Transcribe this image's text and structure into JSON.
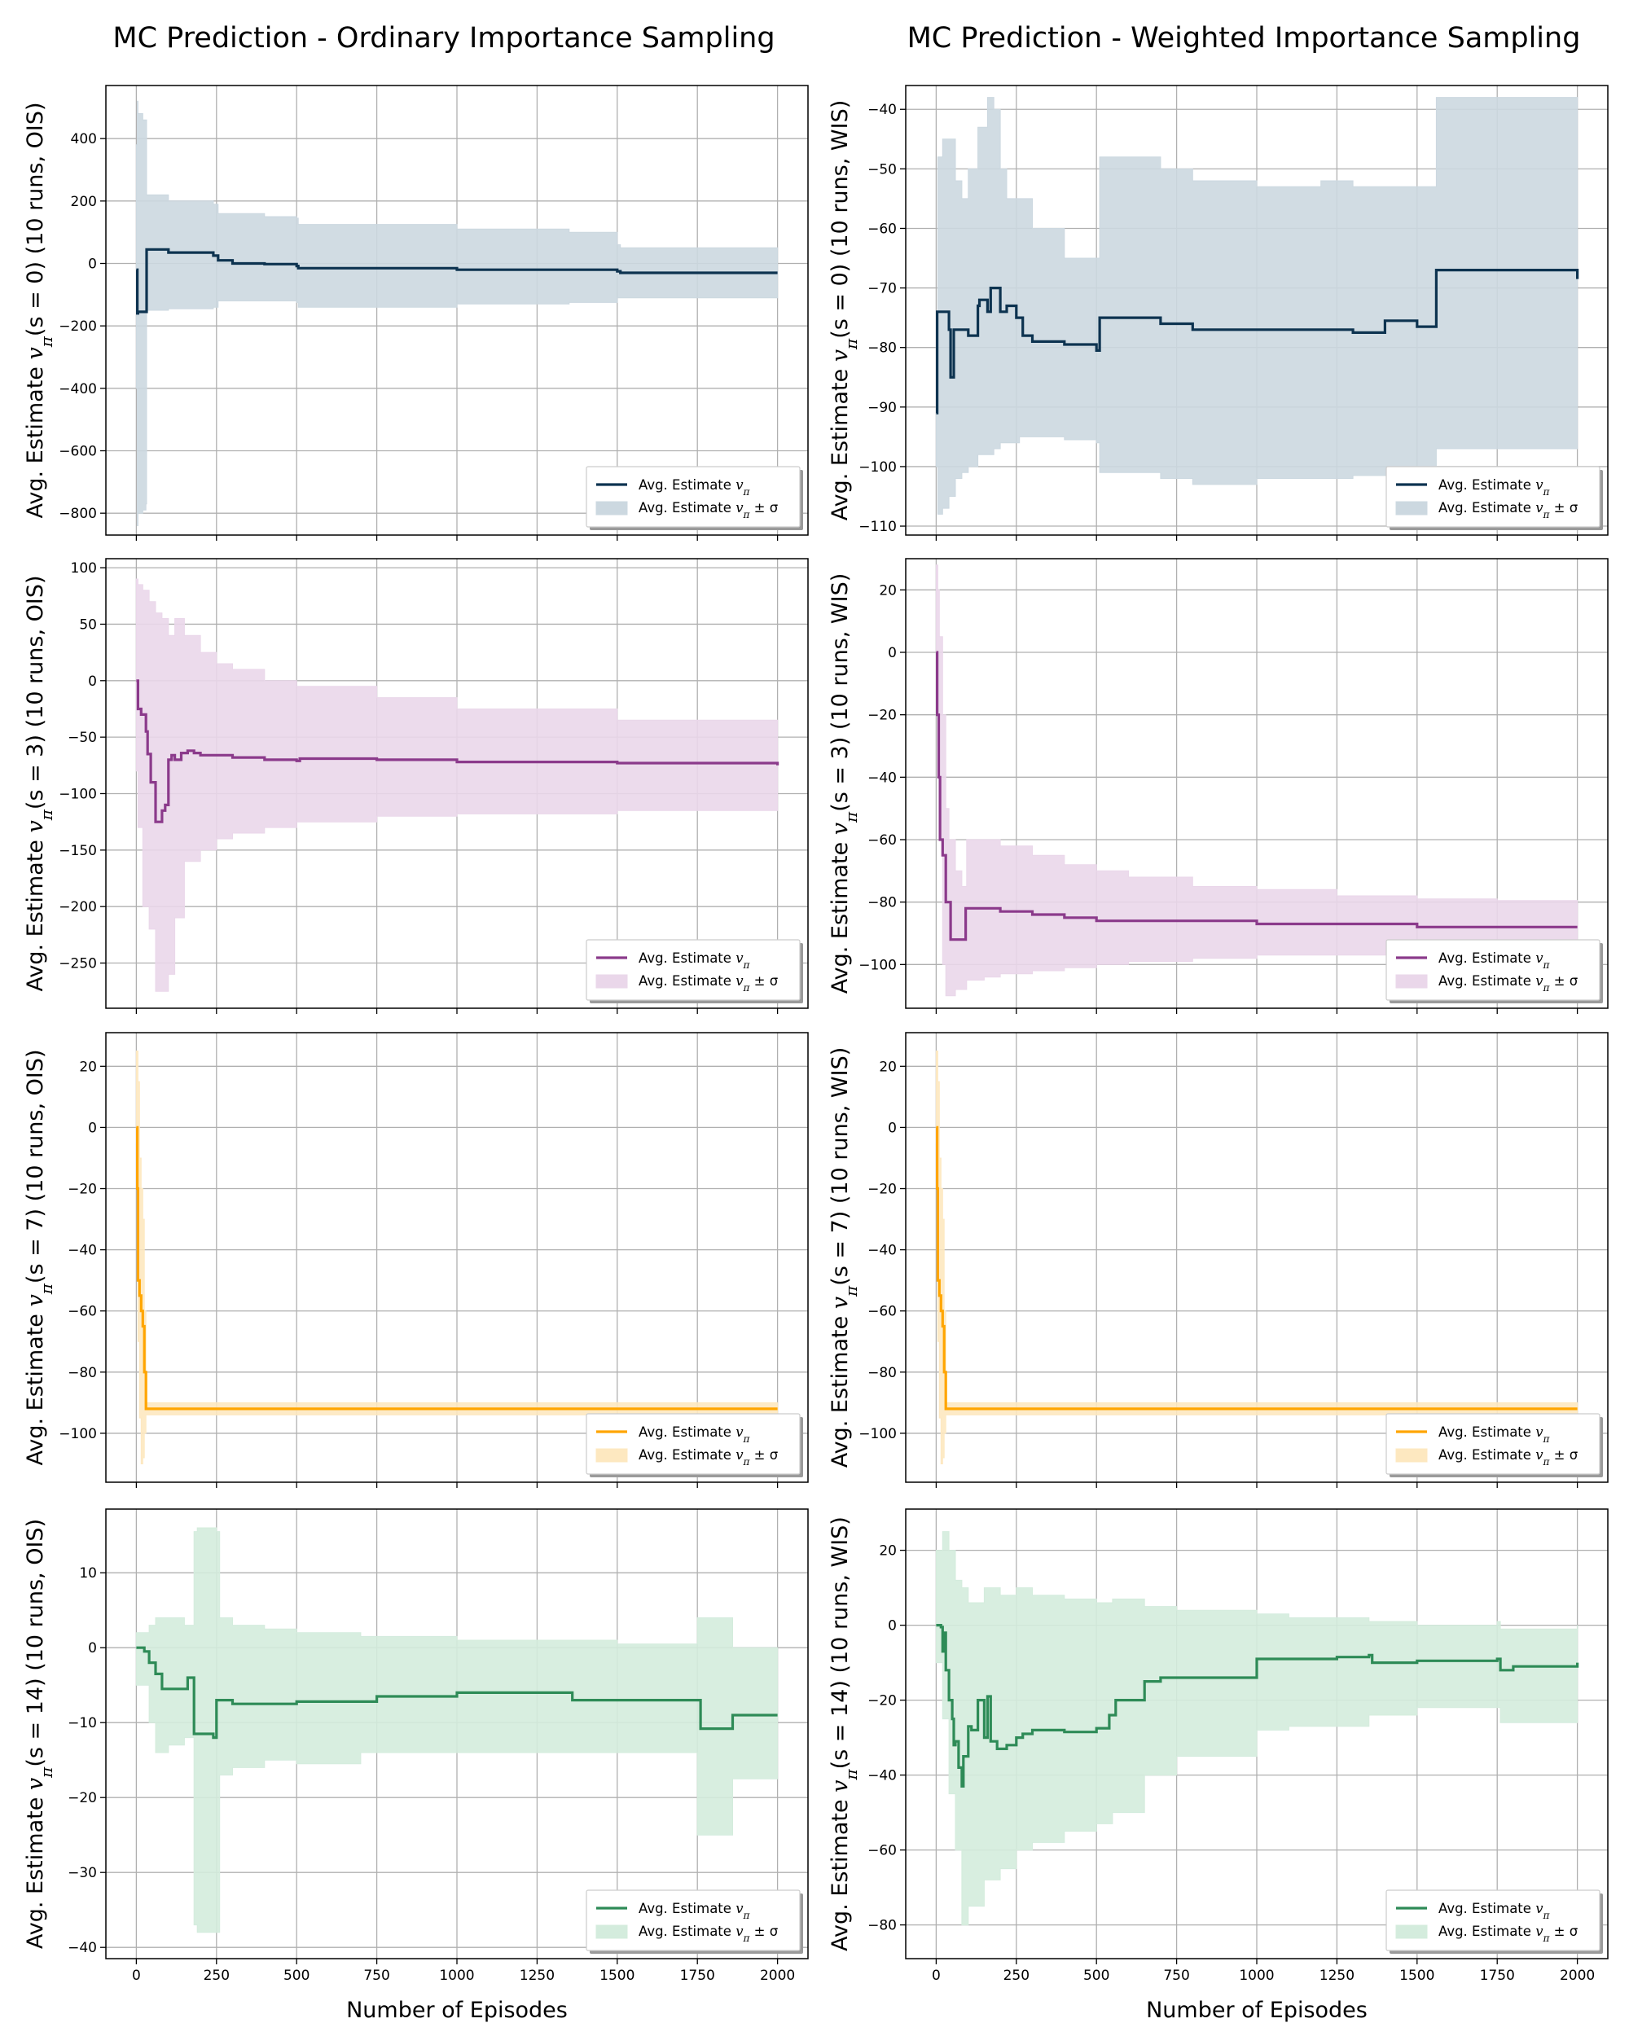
{
  "figure": {
    "col_titles": [
      "MC Prediction - Ordinary Importance Sampling",
      "MC Prediction - Weighted Importance Sampling"
    ],
    "xlabel": "Number of Episodes",
    "legend_labels": [
      "Avg. Estimate vπ",
      "Avg. Estimate vπ ± σ"
    ]
  },
  "chart_data": [
    {
      "type": "line",
      "id": "s0-ois",
      "ylabel": "Avg. Estimate vπ(s = 0) (10 runs, OIS)",
      "color": "#0d3350",
      "band_color": "#ccd8e0",
      "xlim": [
        -95,
        2095
      ],
      "ylim": [
        -870,
        570
      ],
      "xticks": [
        0,
        250,
        500,
        750,
        1000,
        1250,
        1500,
        1750,
        2000
      ],
      "yticks": [
        400,
        200,
        0,
        -200,
        -400,
        -600,
        -800
      ],
      "series": [
        {
          "legend": "Avg. Estimate vπ",
          "x": [
            0,
            3,
            5,
            30,
            32,
            100,
            240,
            255,
            300,
            400,
            500,
            505,
            1000,
            1500,
            1510,
            2000
          ],
          "y": [
            -20,
            -160,
            -155,
            -155,
            45,
            35,
            25,
            10,
            0,
            -2,
            -8,
            -15,
            -20,
            -25,
            -30,
            -30
          ]
        },
        {
          "legend": "Avg. Estimate vπ ± σ",
          "x": [
            0,
            3,
            5,
            20,
            30,
            32,
            100,
            240,
            255,
            400,
            500,
            505,
            1000,
            1350,
            1500,
            1510,
            2000
          ],
          "upper": [
            380,
            520,
            480,
            460,
            460,
            220,
            200,
            190,
            160,
            150,
            145,
            125,
            110,
            100,
            60,
            50,
            50
          ],
          "lower": [
            -400,
            -840,
            -800,
            -790,
            -770,
            -150,
            -145,
            -140,
            -120,
            -120,
            -125,
            -140,
            -130,
            -125,
            -110,
            -110,
            -105
          ]
        }
      ]
    },
    {
      "type": "line",
      "id": "s0-wis",
      "ylabel": "Avg. Estimate vπ(s = 0) (10 runs, WIS)",
      "color": "#0d3350",
      "band_color": "#ccd8e0",
      "xlim": [
        -95,
        2095
      ],
      "ylim": [
        -111.5,
        -36
      ],
      "xticks": [
        0,
        250,
        500,
        750,
        1000,
        1250,
        1500,
        1750,
        2000
      ],
      "yticks": [
        -40,
        -50,
        -60,
        -70,
        -80,
        -90,
        -100,
        -110
      ],
      "series": [
        {
          "legend": "Avg. Estimate vπ",
          "x": [
            0,
            3,
            10,
            40,
            45,
            55,
            100,
            130,
            135,
            160,
            170,
            200,
            220,
            250,
            270,
            300,
            400,
            500,
            510,
            700,
            800,
            1000,
            1200,
            1300,
            1400,
            1500,
            1550,
            1560,
            2000
          ],
          "y": [
            -91,
            -74,
            -74,
            -77,
            -85,
            -77,
            -78,
            -73,
            -72,
            -74,
            -70,
            -74,
            -73,
            -75,
            -78,
            -79,
            -79.5,
            -80.5,
            -75,
            -76,
            -77,
            -77,
            -77,
            -77.5,
            -75.5,
            -76.5,
            -76.5,
            -67,
            -68.5
          ]
        },
        {
          "legend": "Avg. Estimate vπ ± σ",
          "x": [
            0,
            5,
            20,
            40,
            60,
            80,
            100,
            130,
            160,
            180,
            200,
            220,
            260,
            300,
            400,
            500,
            510,
            700,
            800,
            1000,
            1200,
            1300,
            1500,
            1560,
            2000
          ],
          "upper": [
            -75,
            -48,
            -45,
            -45,
            -52,
            -55,
            -50,
            -43,
            -38,
            -40,
            -50,
            -55,
            -55,
            -60,
            -65,
            -65,
            -48,
            -50,
            -52,
            -53,
            -52,
            -53,
            -53,
            -38,
            -40
          ],
          "lower": [
            -100,
            -108,
            -107,
            -105,
            -102,
            -101,
            -100,
            -98,
            -98,
            -97,
            -96,
            -96,
            -95,
            -95,
            -95.5,
            -96,
            -101,
            -102,
            -103,
            -102,
            -102,
            -101.5,
            -101,
            -97,
            -97
          ]
        }
      ]
    },
    {
      "type": "line",
      "id": "s3-ois",
      "ylabel": "Avg. Estimate vπ(s = 3) (10 runs, OIS)",
      "color": "#8b3a8b",
      "band_color": "#ead7ea",
      "xlim": [
        -95,
        2095
      ],
      "ylim": [
        -290,
        108
      ],
      "xticks": [
        0,
        250,
        500,
        750,
        1000,
        1250,
        1500,
        1750,
        2000
      ],
      "yticks": [
        100,
        50,
        0,
        -50,
        -100,
        -150,
        -200,
        -250
      ],
      "series": [
        {
          "legend": "Avg. Estimate vπ",
          "x": [
            0,
            5,
            15,
            30,
            35,
            45,
            60,
            65,
            70,
            80,
            90,
            100,
            110,
            120,
            140,
            160,
            180,
            200,
            300,
            400,
            500,
            510,
            750,
            1000,
            1500,
            2000
          ],
          "y": [
            0,
            -25,
            -30,
            -45,
            -65,
            -90,
            -125,
            -125,
            -125,
            -115,
            -110,
            -70,
            -66,
            -70,
            -64,
            -62,
            -64,
            -66,
            -68,
            -70,
            -71,
            -69,
            -70,
            -72,
            -73,
            -75
          ]
        },
        {
          "legend": "Avg. Estimate vπ ± σ",
          "x": [
            0,
            5,
            20,
            40,
            60,
            80,
            100,
            120,
            150,
            200,
            250,
            300,
            400,
            500,
            750,
            1000,
            1500,
            2000
          ],
          "upper": [
            90,
            85,
            80,
            70,
            60,
            55,
            40,
            55,
            40,
            25,
            15,
            10,
            0,
            -5,
            -15,
            -25,
            -35,
            -38
          ],
          "lower": [
            -80,
            -130,
            -200,
            -220,
            -275,
            -275,
            -260,
            -210,
            -160,
            -150,
            -140,
            -135,
            -130,
            -125,
            -120,
            -118,
            -115,
            -112
          ]
        }
      ]
    },
    {
      "type": "line",
      "id": "s3-wis",
      "ylabel": "Avg. Estimate vπ(s = 3) (10 runs, WIS)",
      "color": "#8b3a8b",
      "band_color": "#ead7ea",
      "xlim": [
        -95,
        2095
      ],
      "ylim": [
        -114,
        30
      ],
      "xticks": [
        0,
        250,
        500,
        750,
        1000,
        1250,
        1500,
        1750,
        2000
      ],
      "yticks": [
        20,
        0,
        -20,
        -40,
        -60,
        -80,
        -100
      ],
      "series": [
        {
          "legend": "Avg. Estimate vπ",
          "x": [
            0,
            3,
            8,
            12,
            20,
            30,
            40,
            45,
            90,
            92,
            150,
            200,
            300,
            400,
            500,
            750,
            1000,
            1500,
            2000
          ],
          "y": [
            0,
            -20,
            -40,
            -60,
            -65,
            -80,
            -80,
            -92,
            -92,
            -82,
            -82,
            -83,
            -84,
            -85,
            -86,
            -86,
            -87,
            -88,
            -88
          ]
        },
        {
          "legend": "Avg. Estimate vπ ± σ",
          "x": [
            0,
            5,
            10,
            20,
            30,
            40,
            60,
            80,
            90,
            95,
            150,
            200,
            300,
            400,
            500,
            600,
            800,
            1000,
            1250,
            1500,
            1750,
            2000
          ],
          "upper": [
            28,
            20,
            5,
            -20,
            -50,
            -60,
            -70,
            -75,
            -75,
            -60,
            -60,
            -62,
            -65,
            -68,
            -70,
            -72,
            -75,
            -76,
            -78,
            -79,
            -79.5,
            -80
          ],
          "lower": [
            -10,
            -30,
            -60,
            -100,
            -110,
            -110,
            -108,
            -108,
            -108,
            -105,
            -104,
            -103,
            -102,
            -101,
            -100,
            -99,
            -98,
            -97,
            -97,
            -96,
            -96,
            -96
          ]
        }
      ]
    },
    {
      "type": "line",
      "id": "s7-ois",
      "ylabel": "Avg. Estimate vπ(s = 7) (10 runs, OIS)",
      "color": "#ffa500",
      "band_color": "#fde8c0",
      "xlim": [
        -95,
        2095
      ],
      "ylim": [
        -116,
        31
      ],
      "xticks": [
        0,
        250,
        500,
        750,
        1000,
        1250,
        1500,
        1750,
        2000
      ],
      "yticks": [
        20,
        0,
        -20,
        -40,
        -60,
        -80,
        -100
      ],
      "series": [
        {
          "legend": "Avg. Estimate vπ",
          "x": [
            0,
            3,
            5,
            10,
            15,
            20,
            25,
            30,
            2000
          ],
          "y": [
            0,
            -20,
            -50,
            -55,
            -60,
            -65,
            -80,
            -92,
            -92
          ]
        },
        {
          "legend": "Avg. Estimate vπ ± σ",
          "x": [
            0,
            5,
            10,
            15,
            20,
            25,
            30,
            2000
          ],
          "upper": [
            25,
            15,
            -10,
            -20,
            -30,
            -60,
            -90,
            -90
          ],
          "lower": [
            -5,
            -70,
            -95,
            -110,
            -108,
            -100,
            -94,
            -94
          ]
        }
      ]
    },
    {
      "type": "line",
      "id": "s7-wis",
      "ylabel": "Avg. Estimate vπ(s = 7) (10 runs, WIS)",
      "color": "#ffa500",
      "band_color": "#fde8c0",
      "xlim": [
        -95,
        2095
      ],
      "ylim": [
        -116,
        31
      ],
      "xticks": [
        0,
        250,
        500,
        750,
        1000,
        1250,
        1500,
        1750,
        2000
      ],
      "yticks": [
        20,
        0,
        -20,
        -40,
        -60,
        -80,
        -100
      ],
      "series": [
        {
          "legend": "Avg. Estimate vπ",
          "x": [
            0,
            3,
            5,
            10,
            15,
            20,
            25,
            30,
            2000
          ],
          "y": [
            0,
            -20,
            -50,
            -55,
            -60,
            -65,
            -80,
            -92,
            -92
          ]
        },
        {
          "legend": "Avg. Estimate vπ ± σ",
          "x": [
            0,
            5,
            10,
            15,
            20,
            25,
            30,
            2000
          ],
          "upper": [
            25,
            15,
            -10,
            -20,
            -30,
            -60,
            -90,
            -90
          ],
          "lower": [
            -5,
            -70,
            -95,
            -110,
            -108,
            -100,
            -94,
            -94
          ]
        }
      ]
    },
    {
      "type": "line",
      "id": "s14-ois",
      "ylabel": "Avg. Estimate vπ(s = 14) (10 runs, OIS)",
      "color": "#2e8b57",
      "band_color": "#d4ecdd",
      "xlim": [
        -95,
        2095
      ],
      "ylim": [
        -41.5,
        18.5
      ],
      "xticks": [
        0,
        250,
        500,
        750,
        1000,
        1250,
        1500,
        1750,
        2000
      ],
      "yticks": [
        10,
        0,
        -10,
        -20,
        -30,
        -40
      ],
      "series": [
        {
          "legend": "Avg. Estimate vπ",
          "x": [
            0,
            25,
            40,
            60,
            80,
            140,
            160,
            170,
            180,
            240,
            250,
            260,
            300,
            400,
            500,
            750,
            1000,
            1350,
            1360,
            1500,
            1750,
            1760,
            1850,
            1860,
            2000
          ],
          "y": [
            0,
            -0.5,
            -2,
            -3.5,
            -5.5,
            -5.5,
            -4,
            -4,
            -11.5,
            -12,
            -7,
            -7,
            -7.5,
            -7.5,
            -7.2,
            -6.5,
            -6,
            -6,
            -7,
            -7,
            -7,
            -10.8,
            -10.8,
            -9,
            -9
          ]
        },
        {
          "legend": "Avg. Estimate vπ ± σ",
          "x": [
            0,
            40,
            60,
            100,
            150,
            180,
            190,
            250,
            260,
            300,
            400,
            500,
            700,
            1000,
            1350,
            1500,
            1740,
            1750,
            1850,
            1860,
            2000
          ],
          "upper": [
            2,
            3,
            4,
            4,
            3,
            15.5,
            16,
            15.5,
            4,
            3,
            2.5,
            2,
            1.5,
            1,
            1,
            0.5,
            0.5,
            4,
            4,
            0,
            0
          ],
          "lower": [
            -5,
            -10,
            -14,
            -13,
            -12,
            -37,
            -38,
            -38,
            -17,
            -16,
            -15,
            -15.5,
            -14,
            -14,
            -14,
            -14,
            -14,
            -25,
            -25,
            -17.5,
            -17.5
          ]
        }
      ]
    },
    {
      "type": "line",
      "id": "s14-wis",
      "ylabel": "Avg. Estimate vπ(s = 14) (10 runs, WIS)",
      "color": "#2e8b57",
      "band_color": "#d4ecdd",
      "xlim": [
        -95,
        2095
      ],
      "ylim": [
        -89,
        31
      ],
      "xticks": [
        0,
        250,
        500,
        750,
        1000,
        1250,
        1500,
        1750,
        2000
      ],
      "yticks": [
        20,
        0,
        -20,
        -40,
        -60,
        -80
      ],
      "series": [
        {
          "legend": "Avg. Estimate vπ",
          "x": [
            0,
            15,
            20,
            25,
            30,
            40,
            50,
            55,
            60,
            70,
            80,
            85,
            100,
            110,
            130,
            150,
            160,
            170,
            190,
            220,
            250,
            270,
            300,
            400,
            500,
            540,
            560,
            650,
            700,
            1000,
            1250,
            1350,
            1360,
            1500,
            1750,
            1760,
            1800,
            2000
          ],
          "y": [
            0,
            -0.5,
            -7,
            -2,
            -12,
            -20,
            -25,
            -32,
            -31,
            -38,
            -43,
            -35,
            -27,
            -28,
            -20,
            -30,
            -19,
            -31,
            -33,
            -32,
            -30,
            -29,
            -28,
            -28.5,
            -27.5,
            -24,
            -20,
            -15,
            -14,
            -9,
            -8.5,
            -8,
            -10,
            -9.5,
            -9,
            -12,
            -11,
            -10
          ]
        },
        {
          "legend": "Avg. Estimate vπ ± σ",
          "x": [
            0,
            20,
            40,
            60,
            80,
            100,
            150,
            200,
            250,
            300,
            400,
            500,
            550,
            650,
            750,
            1000,
            1100,
            1350,
            1500,
            1750,
            1760,
            2000
          ],
          "upper": [
            20,
            25,
            20,
            12,
            10,
            6,
            10,
            8,
            10,
            8,
            7,
            6,
            7,
            5,
            4,
            3,
            2,
            1,
            0,
            1,
            -1,
            0
          ],
          "lower": [
            -10,
            -25,
            -45,
            -60,
            -80,
            -75,
            -68,
            -65,
            -60,
            -58,
            -55,
            -53,
            -50,
            -40,
            -35,
            -28,
            -27,
            -24,
            -22,
            -22,
            -26,
            -20
          ]
        }
      ]
    }
  ]
}
